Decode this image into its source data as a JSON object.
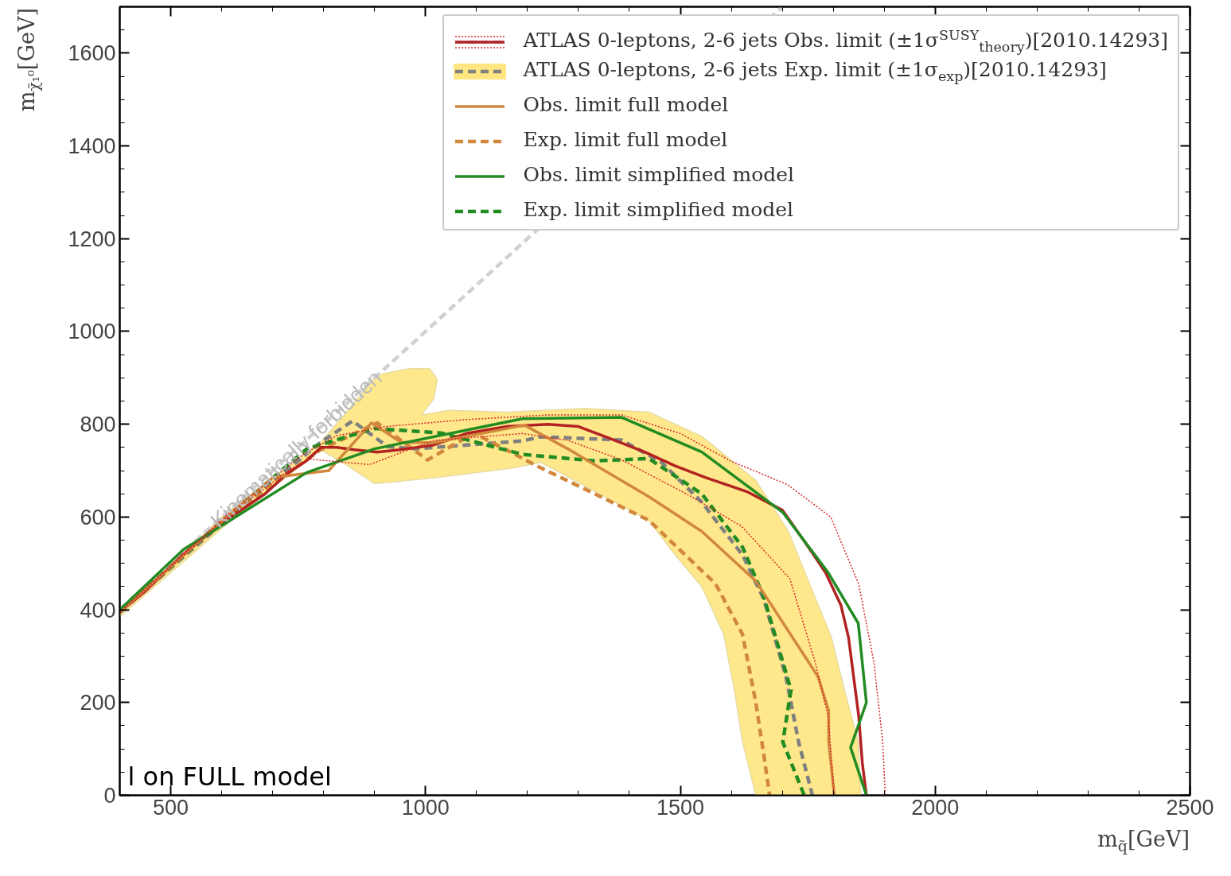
{
  "chart_data": {
    "type": "line",
    "xlabel": "m$_{q̃}$[GeV]",
    "ylabel": "m$_{χ̃₁⁰}$[GeV]",
    "xlim": [
      400,
      2500
    ],
    "ylim": [
      0,
      1700
    ],
    "xticks": [
      500,
      1000,
      1500,
      2000,
      2500
    ],
    "yticks": [
      0,
      200,
      400,
      600,
      800,
      1000,
      1200,
      1400,
      1600
    ],
    "grid": false,
    "legend": "top right",
    "annotations": [
      {
        "text": "Kinematically forbidden",
        "x": 746,
        "y": 746
      },
      "l on FULL model"
    ],
    "series": [
      {
        "color": "#d0d0d0",
        "line_style": "dashed",
        "x": [
          400,
          1700
        ],
        "values": [
          400,
          1700
        ]
      },
      {
        "color": "#d62728",
        "line_style": "dotted",
        "x": [
          400,
          605,
          760,
          825,
          920,
          1080,
          1240,
          1385,
          1500,
          1600,
          1710,
          1795,
          1850,
          1880,
          1897,
          1902
        ],
        "values": [
          395,
          600,
          735,
          775,
          795,
          810,
          820,
          820,
          780,
          720,
          670,
          600,
          455,
          285,
          115,
          0
        ]
      },
      {
        "color": "#d62728",
        "line_style": "dotted",
        "x": [
          400,
          605,
          730,
          770,
          890,
          1015,
          1190,
          1280,
          1385,
          1520,
          1620,
          1715,
          1765,
          1790,
          1802
        ],
        "values": [
          395,
          595,
          700,
          725,
          713,
          765,
          780,
          765,
          723,
          645,
          580,
          467,
          285,
          170,
          0
        ]
      },
      {
        "name": "ATLAS 0-leptons,  2-6 jets Obs. limit (±1σ$^{SUSY}$$_{theory}$)[2010.14293]",
        "color": "#b22222",
        "line_style": "solid",
        "x": [
          400,
          450,
          525,
          605,
          685,
          730,
          765,
          795,
          825,
          860,
          905,
          950,
          1015,
          1080,
          1160,
          1240,
          1300,
          1360,
          1430,
          1490,
          1550,
          1630,
          1700,
          1745,
          1785,
          1815,
          1830,
          1840,
          1850,
          1857,
          1865
        ],
        "values": [
          395,
          440,
          520,
          590,
          650,
          695,
          720,
          750,
          750,
          745,
          740,
          745,
          755,
          780,
          795,
          800,
          795,
          770,
          740,
          710,
          685,
          655,
          615,
          545,
          480,
          410,
          340,
          255,
          170,
          70,
          0
        ]
      },
      {
        "type": "area",
        "color": "#ffe680",
        "x": [
          400,
          605,
          794,
          841,
          905,
          968,
          1008,
          1023,
          1016,
          992,
          1047,
          1158,
          1316,
          1438,
          1542,
          1648,
          1712,
          1743,
          1796,
          1822,
          1849,
          1854,
          1648,
          1622,
          1606,
          1585,
          1542,
          1490,
          1438,
          1226,
          1174,
          1015,
          900,
          837,
          794,
          605,
          400
        ],
        "values": [
          393,
          605,
          761,
          821,
          906,
          920,
          920,
          897,
          855,
          820,
          830,
          826,
          834,
          826,
          774,
          679,
          569,
          484,
          342,
          227,
          115,
          0,
          0,
          115,
          227,
          347,
          450,
          518,
          593,
          718,
          706,
          684,
          672,
          718,
          745,
          580,
          385
        ]
      },
      {
        "name": "ATLAS 0-leptons,  2-6 jets Exp. limit (±1σ$_{exp}$)[2010.14293]",
        "color": "#808080",
        "line_style": "dashed",
        "x": [
          400,
          605,
          794,
          857,
          925,
          979,
          1190,
          1226,
          1384,
          1463,
          1542,
          1622,
          1664,
          1707,
          1717,
          1732,
          1759
        ],
        "values": [
          395,
          590,
          761,
          807,
          752,
          747,
          764,
          773,
          766,
          718,
          632,
          518,
          422,
          256,
          200,
          115,
          0
        ]
      },
      {
        "name": "Obs. limit full model",
        "color": "#d2883c",
        "line_style": "solid",
        "x": [
          400,
          605,
          700,
          810,
          894,
          952,
          1015,
          1194,
          1279,
          1438,
          1542,
          1648,
          1770,
          1791,
          1791,
          1802
        ],
        "values": [
          395,
          595,
          685,
          700,
          803,
          761,
          760,
          798,
          747,
          644,
          569,
          462,
          256,
          183,
          115,
          0
        ]
      },
      {
        "name": "Exp. limit full model",
        "color": "#d2883c",
        "line_style": "dashed",
        "x": [
          400,
          605,
          794,
          905,
          1004,
          1095,
          1226,
          1332,
          1438,
          1569,
          1622,
          1648,
          1664,
          1675
        ],
        "values": [
          395,
          595,
          745,
          803,
          723,
          781,
          706,
          650,
          593,
          456,
          347,
          200,
          85,
          0
        ]
      },
      {
        "name": "Obs. limit simplified model",
        "color": "#228b22",
        "line_style": "solid",
        "x": [
          400,
          525,
          767,
          900,
          1190,
          1384,
          1542,
          1701,
          1790,
          1849,
          1865,
          1834,
          1865
        ],
        "values": [
          400,
          530,
          696,
          747,
          812,
          815,
          740,
          610,
          480,
          371,
          200,
          103,
          0
        ]
      },
      {
        "name": "Exp. limit simplified model",
        "color": "#228b22",
        "line_style": "dashed",
        "x": [
          400,
          605,
          767,
          900,
          1031,
          1190,
          1332,
          1438,
          1542,
          1622,
          1664,
          1717,
          1701,
          1743
        ],
        "values": [
          395,
          595,
          747,
          791,
          781,
          735,
          721,
          726,
          650,
          535,
          427,
          227,
          115,
          0
        ]
      }
    ]
  }
}
